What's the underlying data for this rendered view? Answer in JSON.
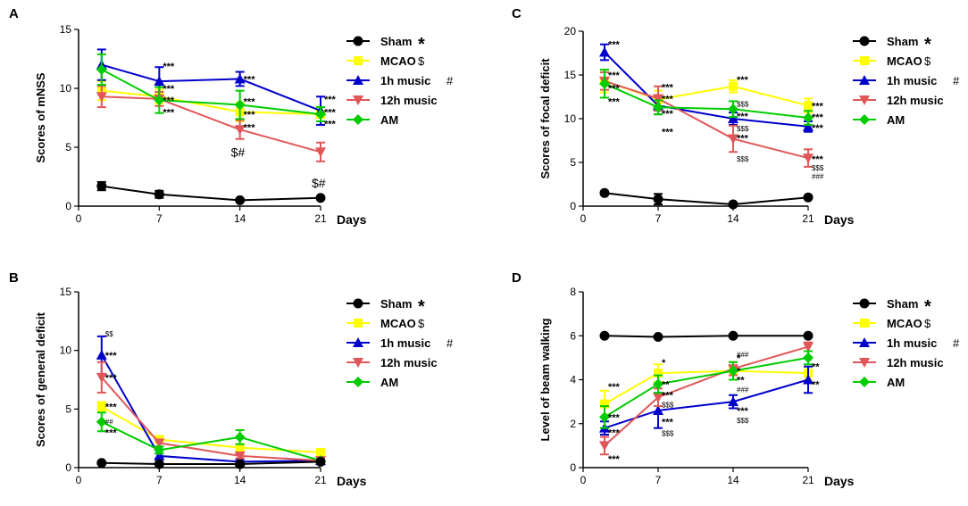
{
  "chart_data": [
    {
      "panel": "A",
      "type": "line",
      "title": "",
      "xlabel": "Days",
      "ylabel": "Scores of mNSS",
      "xlim": [
        0,
        21
      ],
      "ylim": [
        0,
        15
      ],
      "xticks": [
        0,
        7,
        14,
        21
      ],
      "yticks": [
        0,
        5,
        10,
        15
      ],
      "x": [
        2,
        7,
        14,
        21
      ],
      "series": [
        {
          "name": "Sham",
          "color": "#000000",
          "marker": "circle",
          "values": [
            1.7,
            1.0,
            0.5,
            0.7
          ],
          "errors": [
            0.35,
            0.3,
            0.1,
            0.1
          ]
        },
        {
          "name": "MCAO",
          "color": "#ffff00",
          "marker": "square",
          "values": [
            9.8,
            9.3,
            8.0,
            7.8
          ],
          "errors": [
            0.8,
            0.6,
            0.8,
            0.6
          ]
        },
        {
          "name": "1h music",
          "color": "#0000cc",
          "marker": "triangle-up",
          "values": [
            12.0,
            10.6,
            10.8,
            8.1
          ],
          "errors": [
            1.3,
            1.2,
            0.6,
            1.2
          ]
        },
        {
          "name": "12h music",
          "color": "#e15759",
          "marker": "triangle-down",
          "values": [
            9.3,
            9.1,
            6.5,
            4.6
          ],
          "errors": [
            0.9,
            0.6,
            0.8,
            0.8
          ]
        },
        {
          "name": "AM",
          "color": "#00cc00",
          "marker": "diamond",
          "values": [
            11.6,
            9.0,
            8.6,
            7.8
          ],
          "errors": [
            1.3,
            1.1,
            1.2,
            0.6
          ]
        }
      ],
      "annotations": [
        {
          "x": 7,
          "y": 11.9,
          "text": "***",
          "style": "normal"
        },
        {
          "x": 7,
          "y": 10.0,
          "text": "***",
          "style": "normal"
        },
        {
          "x": 7,
          "y": 9.0,
          "text": "***",
          "style": "normal"
        },
        {
          "x": 7,
          "y": 8.0,
          "text": "***",
          "style": "normal"
        },
        {
          "x": 14,
          "y": 10.8,
          "text": "***",
          "style": "normal"
        },
        {
          "x": 14,
          "y": 8.9,
          "text": "***",
          "style": "normal"
        },
        {
          "x": 14,
          "y": 7.8,
          "text": "***",
          "style": "normal"
        },
        {
          "x": 14,
          "y": 6.7,
          "text": "***",
          "style": "normal"
        },
        {
          "x": 14,
          "y": 4.5,
          "text": "$#",
          "style": "big"
        },
        {
          "x": 21,
          "y": 9.1,
          "text": "***",
          "style": "normal"
        },
        {
          "x": 21,
          "y": 8.0,
          "text": "***",
          "style": "normal"
        },
        {
          "x": 21,
          "y": 7.0,
          "text": "***",
          "style": "normal"
        },
        {
          "x": 21,
          "y": 1.9,
          "text": "$#",
          "style": "big"
        }
      ],
      "legend": {
        "position": "right",
        "entries": [
          {
            "label": "Sham",
            "symbol": "*"
          },
          {
            "label": "MCAO",
            "symbol": "$"
          },
          {
            "label": "1h music",
            "symbol": "#"
          },
          {
            "label": "12h music",
            "symbol": ""
          },
          {
            "label": "AM",
            "symbol": ""
          }
        ]
      }
    },
    {
      "panel": "B",
      "type": "line",
      "title": "",
      "xlabel": "Days",
      "ylabel": "Scores of general deficit",
      "xlim": [
        0,
        21
      ],
      "ylim": [
        0,
        15
      ],
      "xticks": [
        0,
        7,
        14,
        21
      ],
      "yticks": [
        0,
        5,
        10,
        15
      ],
      "x": [
        2,
        7,
        14,
        21
      ],
      "series": [
        {
          "name": "Sham",
          "color": "#000000",
          "marker": "circle",
          "values": [
            0.4,
            0.3,
            0.3,
            0.5
          ],
          "errors": [
            0.1,
            0.1,
            0.1,
            0.1
          ]
        },
        {
          "name": "MCAO",
          "color": "#ffff00",
          "marker": "square",
          "values": [
            5.2,
            2.4,
            1.7,
            1.3
          ],
          "errors": [
            0.4,
            0.3,
            0.3,
            0.2
          ]
        },
        {
          "name": "1h music",
          "color": "#0000cc",
          "marker": "triangle-up",
          "values": [
            9.6,
            1.0,
            0.5,
            0.6
          ],
          "errors": [
            1.6,
            0.2,
            0.2,
            0.1
          ]
        },
        {
          "name": "12h music",
          "color": "#e15759",
          "marker": "triangle-down",
          "values": [
            7.7,
            2.1,
            1.0,
            0.6
          ],
          "errors": [
            1.3,
            0.3,
            0.2,
            0.1
          ]
        },
        {
          "name": "AM",
          "color": "#00cc00",
          "marker": "diamond",
          "values": [
            3.9,
            1.5,
            2.6,
            0.6
          ],
          "errors": [
            0.8,
            0.3,
            0.6,
            0.1
          ]
        }
      ],
      "annotations": [
        {
          "x": 2,
          "y": 11.5,
          "text": "$$",
          "style": "small"
        },
        {
          "x": 2,
          "y": 9.6,
          "text": "***",
          "style": "normal"
        },
        {
          "x": 2,
          "y": 7.7,
          "text": "***",
          "style": "normal"
        },
        {
          "x": 2,
          "y": 5.2,
          "text": "***",
          "style": "normal"
        },
        {
          "x": 2,
          "y": 4.0,
          "text": "##",
          "style": "small"
        },
        {
          "x": 2,
          "y": 3.0,
          "text": "***",
          "style": "normal"
        }
      ],
      "legend": {
        "position": "right",
        "entries": [
          {
            "label": "Sham",
            "symbol": "*"
          },
          {
            "label": "MCAO",
            "symbol": "$"
          },
          {
            "label": "1h music",
            "symbol": "#"
          },
          {
            "label": "12h music",
            "symbol": ""
          },
          {
            "label": "AM",
            "symbol": ""
          }
        ]
      }
    },
    {
      "panel": "C",
      "type": "line",
      "title": "",
      "xlabel": "Days",
      "ylabel": "Scores of focal deficit",
      "xlim": [
        0,
        21
      ],
      "ylim": [
        0,
        20
      ],
      "xticks": [
        0,
        7,
        14,
        21
      ],
      "yticks": [
        0,
        5,
        10,
        15,
        20
      ],
      "x": [
        2,
        7,
        14,
        21
      ],
      "series": [
        {
          "name": "Sham",
          "color": "#000000",
          "marker": "circle",
          "values": [
            1.5,
            0.8,
            0.2,
            1.0
          ],
          "errors": [
            0.2,
            0.6,
            0.2,
            0.1
          ]
        },
        {
          "name": "MCAO",
          "color": "#ffff00",
          "marker": "square",
          "values": [
            14.3,
            12.2,
            13.7,
            11.5
          ],
          "errors": [
            1.3,
            1.0,
            0.7,
            0.8
          ]
        },
        {
          "name": "1h music",
          "color": "#0000cc",
          "marker": "triangle-up",
          "values": [
            17.6,
            11.5,
            10.0,
            9.1
          ],
          "errors": [
            0.9,
            1.0,
            0.7,
            0.6
          ]
        },
        {
          "name": "12h music",
          "color": "#e15759",
          "marker": "triangle-down",
          "values": [
            14.3,
            12.3,
            7.7,
            5.5
          ],
          "errors": [
            1.0,
            1.4,
            1.5,
            1.0
          ]
        },
        {
          "name": "AM",
          "color": "#00cc00",
          "marker": "diamond",
          "values": [
            14.0,
            11.3,
            11.1,
            10.1
          ],
          "errors": [
            1.6,
            0.8,
            0.9,
            0.8
          ]
        }
      ],
      "annotations": [
        {
          "x": 2,
          "y": 18.5,
          "text": "***",
          "style": "normal"
        },
        {
          "x": 2,
          "y": 15.0,
          "text": "***",
          "style": "normal"
        },
        {
          "x": 2,
          "y": 13.5,
          "text": "***",
          "style": "normal"
        },
        {
          "x": 2,
          "y": 12.0,
          "text": "***",
          "style": "normal"
        },
        {
          "x": 7,
          "y": 13.6,
          "text": "***",
          "style": "normal"
        },
        {
          "x": 7,
          "y": 12.3,
          "text": "***",
          "style": "normal"
        },
        {
          "x": 7,
          "y": 10.6,
          "text": "***",
          "style": "normal"
        },
        {
          "x": 7,
          "y": 8.5,
          "text": "***",
          "style": "normal"
        },
        {
          "x": 14,
          "y": 14.5,
          "text": "***",
          "style": "normal"
        },
        {
          "x": 14,
          "y": 11.8,
          "text": "$$$",
          "style": "small"
        },
        {
          "x": 14,
          "y": 10.3,
          "text": "***",
          "style": "normal"
        },
        {
          "x": 14,
          "y": 9.0,
          "text": "$$$",
          "style": "small"
        },
        {
          "x": 14,
          "y": 7.8,
          "text": "***",
          "style": "normal"
        },
        {
          "x": 14,
          "y": 5.5,
          "text": "$$$",
          "style": "small"
        },
        {
          "x": 21,
          "y": 11.5,
          "text": "***",
          "style": "normal"
        },
        {
          "x": 21,
          "y": 10.2,
          "text": "***",
          "style": "normal"
        },
        {
          "x": 21,
          "y": 9.0,
          "text": "***",
          "style": "normal"
        },
        {
          "x": 21,
          "y": 5.4,
          "text": "***",
          "style": "normal"
        },
        {
          "x": 21,
          "y": 4.5,
          "text": "$$$",
          "style": "small"
        },
        {
          "x": 21,
          "y": 3.5,
          "text": "###",
          "style": "small"
        }
      ],
      "legend": {
        "position": "right",
        "entries": [
          {
            "label": "Sham",
            "symbol": "*"
          },
          {
            "label": "MCAO",
            "symbol": "$"
          },
          {
            "label": "1h music",
            "symbol": "#"
          },
          {
            "label": "12h music",
            "symbol": ""
          },
          {
            "label": "AM",
            "symbol": ""
          }
        ]
      }
    },
    {
      "panel": "D",
      "type": "line",
      "title": "",
      "xlabel": "Days",
      "ylabel": "Level of beam walking",
      "xlim": [
        0,
        21
      ],
      "ylim": [
        0,
        8
      ],
      "xticks": [
        0,
        7,
        14,
        21
      ],
      "yticks": [
        0,
        2,
        4,
        6,
        8
      ],
      "x": [
        2,
        7,
        14,
        21
      ],
      "series": [
        {
          "name": "Sham",
          "color": "#000000",
          "marker": "circle",
          "values": [
            6.0,
            5.95,
            6.0,
            6.0
          ],
          "errors": [
            0.05,
            0.05,
            0.05,
            0.05
          ]
        },
        {
          "name": "MCAO",
          "color": "#ffff00",
          "marker": "square",
          "values": [
            2.9,
            4.3,
            4.4,
            4.3
          ],
          "errors": [
            0.6,
            0.4,
            0.4,
            0.3
          ]
        },
        {
          "name": "1h music",
          "color": "#0000cc",
          "marker": "triangle-up",
          "values": [
            1.8,
            2.6,
            3.0,
            4.0
          ],
          "errors": [
            0.3,
            0.8,
            0.3,
            0.6
          ]
        },
        {
          "name": "12h music",
          "color": "#e15759",
          "marker": "triangle-down",
          "values": [
            1.0,
            3.2,
            4.5,
            5.5
          ],
          "errors": [
            0.4,
            0.4,
            0.3,
            0.2
          ]
        },
        {
          "name": "AM",
          "color": "#00cc00",
          "marker": "diamond",
          "values": [
            2.3,
            3.8,
            4.4,
            5.0
          ],
          "errors": [
            0.5,
            0.4,
            0.4,
            0.3
          ]
        }
      ],
      "annotations": [
        {
          "x": 2,
          "y": 3.7,
          "text": "***",
          "style": "normal"
        },
        {
          "x": 2,
          "y": 2.3,
          "text": "***",
          "style": "normal"
        },
        {
          "x": 2,
          "y": 1.6,
          "text": "***",
          "style": "normal"
        },
        {
          "x": 2,
          "y": 0.4,
          "text": "***",
          "style": "normal"
        },
        {
          "x": 7,
          "y": 4.8,
          "text": "*",
          "style": "normal"
        },
        {
          "x": 7,
          "y": 3.8,
          "text": "**",
          "style": "normal"
        },
        {
          "x": 7,
          "y": 3.3,
          "text": "***",
          "style": "normal"
        },
        {
          "x": 7,
          "y": 2.9,
          "text": "$$$",
          "style": "small"
        },
        {
          "x": 7,
          "y": 2.1,
          "text": "***",
          "style": "normal"
        },
        {
          "x": 7,
          "y": 1.6,
          "text": "$$$",
          "style": "small"
        },
        {
          "x": 14,
          "y": 5.0,
          "text": "*",
          "style": "normal"
        },
        {
          "x": 14,
          "y": 5.2,
          "text": "###",
          "style": "small"
        },
        {
          "x": 14,
          "y": 4.4,
          "text": "*",
          "style": "normal"
        },
        {
          "x": 14,
          "y": 4.0,
          "text": "**",
          "style": "normal"
        },
        {
          "x": 14,
          "y": 3.6,
          "text": "###",
          "style": "small"
        },
        {
          "x": 14,
          "y": 2.6,
          "text": "***",
          "style": "normal"
        },
        {
          "x": 14,
          "y": 2.2,
          "text": "$$$",
          "style": "small"
        },
        {
          "x": 21,
          "y": 4.6,
          "text": "**",
          "style": "normal"
        },
        {
          "x": 21,
          "y": 3.8,
          "text": "**",
          "style": "normal"
        }
      ],
      "legend": {
        "position": "right",
        "entries": [
          {
            "label": "Sham",
            "symbol": "*"
          },
          {
            "label": "MCAO",
            "symbol": "$"
          },
          {
            "label": "1h music",
            "symbol": "#"
          },
          {
            "label": "12h music",
            "symbol": ""
          },
          {
            "label": "AM",
            "symbol": ""
          }
        ]
      }
    }
  ]
}
